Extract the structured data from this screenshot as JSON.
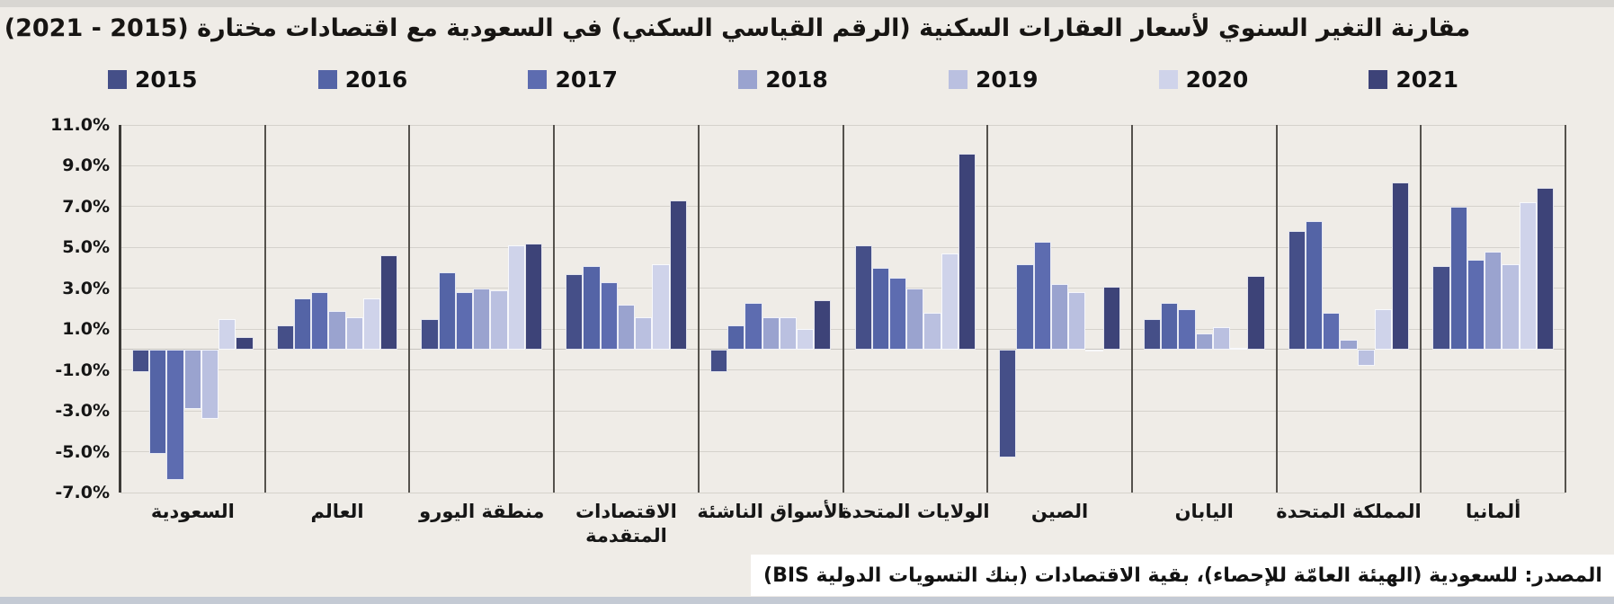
{
  "title_text": "مقارنة التغير السنوي لأسعار العقارات السكنية (الرقم القياسي السكني) في السعودية مع اقتصادات مختارة (2015 - 2021)",
  "source": {
    "text": "المصدر: للسعودية (الهيئة العامّة للإحصاء)، بقية الاقتصادات (بنك التسويات الدولية BIS)"
  },
  "chart_data": {
    "type": "bar",
    "title": "مقارنة التغير السنوي لأسعار العقارات السكنية (الرقم القياسي السكني) في السعودية مع اقتصادات مختارة (2015 - 2021)",
    "unit": "%",
    "ylim": [
      -7,
      11
    ],
    "grid": true,
    "legend_position": "top",
    "y_ticks": [
      {
        "v": 11,
        "label": "11.0%"
      },
      {
        "v": 9,
        "label": "9.0%"
      },
      {
        "v": 7,
        "label": "7.0%"
      },
      {
        "v": 5,
        "label": "5.0%"
      },
      {
        "v": 3,
        "label": "3.0%"
      },
      {
        "v": 1,
        "label": "1.0%"
      },
      {
        "v": -1,
        "label": "-1.0%"
      },
      {
        "v": -3,
        "label": "-3.0%"
      },
      {
        "v": -5,
        "label": "-5.0%"
      },
      {
        "v": -7,
        "label": "-7.0%"
      }
    ],
    "categories": [
      "السعودية",
      "العالم",
      "منطقة اليورو",
      "الاقتصادات\nالمتقدمة",
      "الأسواق الناشئة",
      "الولايات المتحدة",
      "الصين",
      "اليابان",
      "المملكة المتحدة",
      "ألمانيا"
    ],
    "series": [
      {
        "name": "2015",
        "color": "#454f88",
        "values": [
          -1.1,
          1.2,
          1.5,
          3.7,
          -1.1,
          5.1,
          -5.3,
          1.5,
          5.8,
          4.1
        ]
      },
      {
        "name": "2016",
        "color": "#5464a6",
        "values": [
          -5.1,
          2.5,
          3.8,
          4.1,
          1.2,
          4.0,
          4.2,
          2.3,
          6.3,
          7.0
        ]
      },
      {
        "name": "2017",
        "color": "#5d6cb0",
        "values": [
          -6.4,
          2.8,
          2.8,
          3.3,
          2.3,
          3.5,
          5.3,
          2.0,
          1.8,
          4.4
        ]
      },
      {
        "name": "2018",
        "color": "#9aa3cf",
        "values": [
          -2.9,
          1.9,
          3.0,
          2.2,
          1.6,
          3.0,
          3.2,
          0.8,
          0.5,
          4.8
        ]
      },
      {
        "name": "2019",
        "color": "#bac0e0",
        "values": [
          -3.4,
          1.6,
          2.9,
          1.6,
          1.6,
          1.8,
          2.8,
          1.1,
          -0.8,
          4.2
        ]
      },
      {
        "name": "2020",
        "color": "#cfd3ea",
        "values": [
          1.5,
          2.5,
          5.1,
          4.2,
          1.0,
          4.7,
          -0.1,
          0.1,
          2.0,
          7.2
        ]
      },
      {
        "name": "2021",
        "color": "#3d4378",
        "values": [
          0.6,
          4.6,
          5.2,
          7.3,
          2.4,
          9.6,
          3.1,
          3.6,
          8.2,
          7.9
        ]
      }
    ]
  }
}
